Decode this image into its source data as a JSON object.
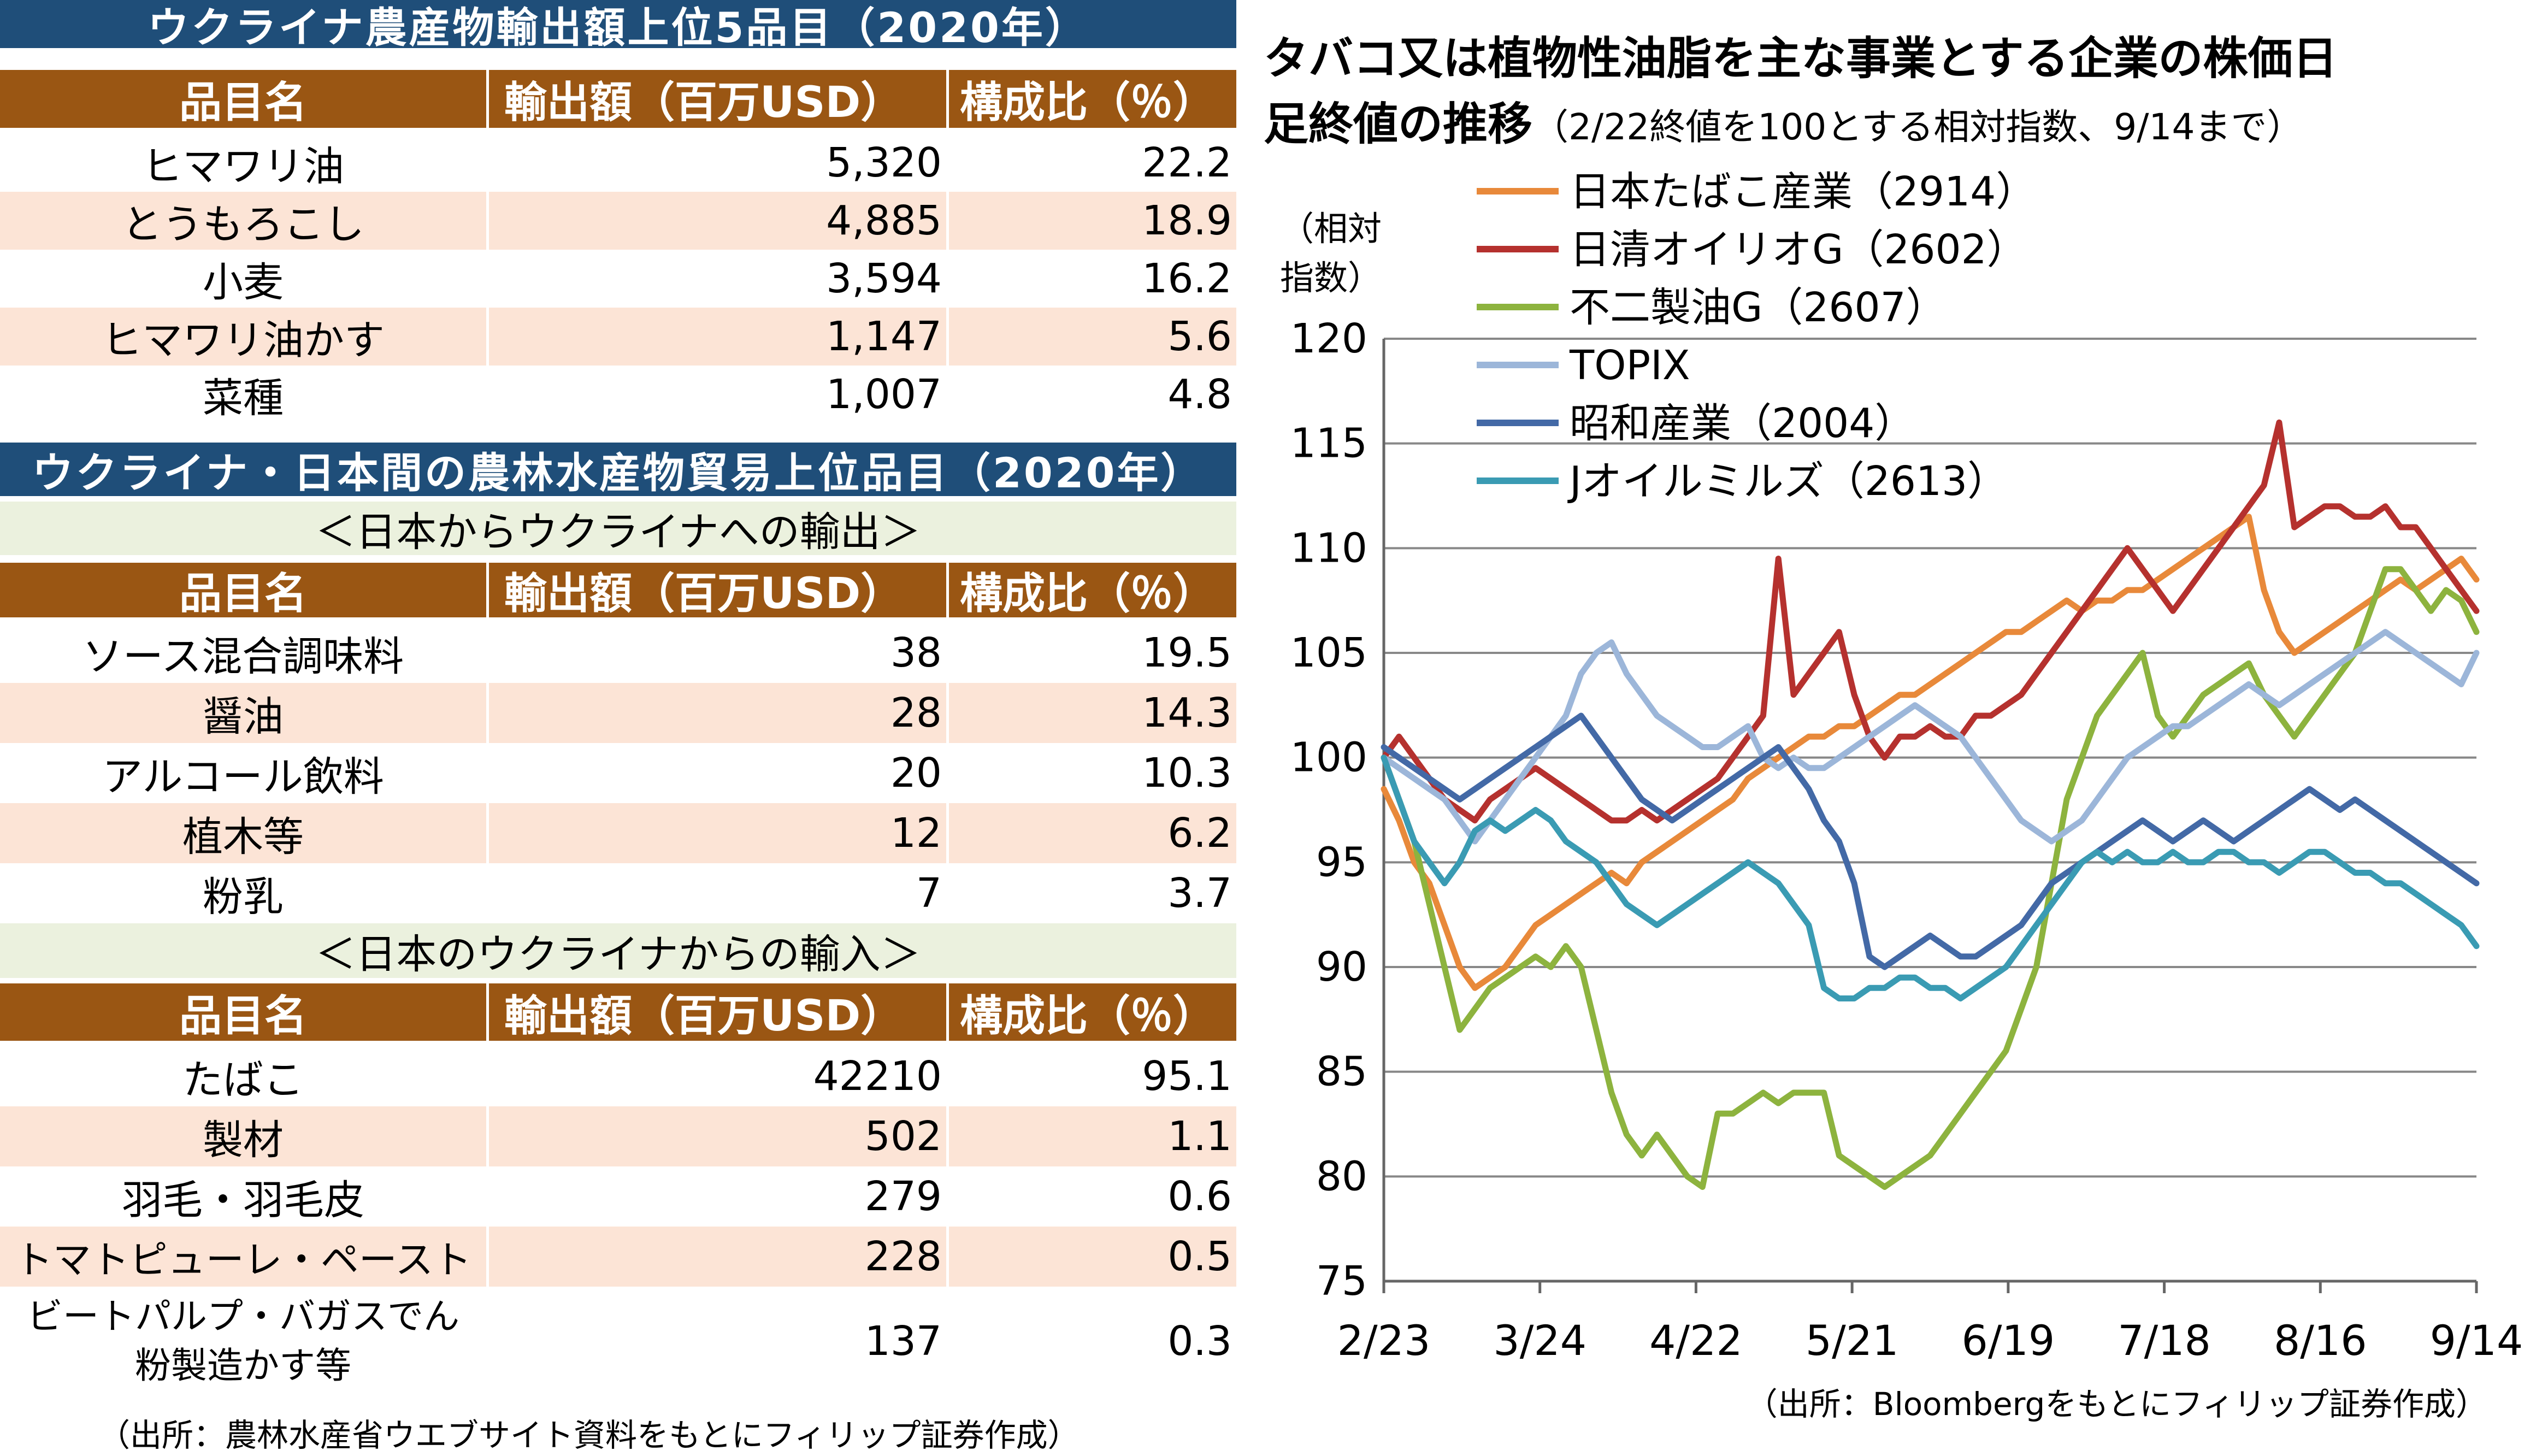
{
  "table1": {
    "title": "ウクライナ農産物輸出額上位5品目（2020年）",
    "headers": [
      "品目名",
      "輸出額（百万USD）",
      "構成比（％）"
    ],
    "rows": [
      [
        "ヒマワリ油",
        "5,320",
        "22.2"
      ],
      [
        "とうもろこし",
        "4,885",
        "18.9"
      ],
      [
        "小麦",
        "3,594",
        "16.2"
      ],
      [
        "ヒマワリ油かす",
        "1,147",
        "5.6"
      ],
      [
        "菜種",
        "1,007",
        "4.8"
      ]
    ]
  },
  "table2": {
    "title": "ウクライナ・日本間の農林水産物貿易上位品目（2020年）",
    "export": {
      "subtitle": "＜日本からウクライナへの輸出＞",
      "headers": [
        "品目名",
        "輸出額（百万USD）",
        "構成比（％）"
      ],
      "rows": [
        [
          "ソース混合調味料",
          "38",
          "19.5"
        ],
        [
          "醤油",
          "28",
          "14.3"
        ],
        [
          "アルコール飲料",
          "20",
          "10.3"
        ],
        [
          "植木等",
          "12",
          "6.2"
        ],
        [
          "粉乳",
          "7",
          "3.7"
        ]
      ]
    },
    "import": {
      "subtitle": "＜日本のウクライナからの輸入＞",
      "headers": [
        "品目名",
        "輸出額（百万USD）",
        "構成比（％）"
      ],
      "rows": [
        [
          "たばこ",
          "42210",
          "95.1"
        ],
        [
          "製材",
          "502",
          "1.1"
        ],
        [
          "羽毛・羽毛皮",
          "279",
          "0.6"
        ],
        [
          "トマトピューレ・ペースト",
          "228",
          "0.5"
        ]
      ],
      "last_row": {
        "line1": "ビートパルプ・バガスでん",
        "line2": "粉製造かす等",
        "value": "137",
        "share": "0.3"
      }
    }
  },
  "left_source": "（出所：農林水産省ウエブサイト資料をもとにフィリップ証券作成）",
  "chart_data": {
    "type": "line",
    "title_bold_1": "タバコ又は植物性油脂を主な事業とする企業の株価日",
    "title_bold_2": "足終値の推移",
    "title_note": "（2/22終値を100とする相対指数、9/14まで）",
    "ylabel_1": "（相対",
    "ylabel_2": "指数）",
    "source": "（出所：Bloombergをもとにフィリップ証券作成）",
    "ylim": [
      75,
      120
    ],
    "yticks": [
      75,
      80,
      85,
      90,
      95,
      100,
      105,
      110,
      115,
      120
    ],
    "x_tick_labels": [
      "2/23",
      "3/24",
      "4/22",
      "5/21",
      "6/19",
      "7/18",
      "8/16",
      "9/14"
    ],
    "grid": true,
    "legend_position": "top-left",
    "series": [
      {
        "name": "日本たばこ産業（2914）",
        "color": "#e8893a",
        "values": [
          98.5,
          97,
          95,
          94,
          92,
          90,
          89,
          89.5,
          90,
          91,
          92,
          92.5,
          93,
          93.5,
          94,
          94.5,
          94,
          95,
          95.5,
          96,
          96.5,
          97,
          97.5,
          98,
          99,
          99.5,
          100,
          100.5,
          101,
          101,
          101.5,
          101.5,
          102,
          102.5,
          103,
          103,
          103.5,
          104,
          104.5,
          105,
          105.5,
          106,
          106,
          106.5,
          107,
          107.5,
          107,
          107.5,
          107.5,
          108,
          108,
          108.5,
          109,
          109.5,
          110,
          110.5,
          111,
          111.5,
          108,
          106,
          105,
          105.5,
          106,
          106.5,
          107,
          107.5,
          108,
          108.5,
          108,
          108.5,
          109,
          109.5,
          108.5
        ]
      },
      {
        "name": "日清オイリオG（2602）",
        "color": "#b5312e",
        "values": [
          100,
          101,
          100,
          99,
          98,
          97.5,
          97,
          98,
          98.5,
          99,
          99.5,
          99,
          98.5,
          98,
          97.5,
          97,
          97,
          97.5,
          97,
          97.5,
          98,
          98.5,
          99,
          100,
          101,
          102,
          109.5,
          103,
          104,
          105,
          106,
          103,
          101,
          100,
          101,
          101,
          101.5,
          101,
          101,
          102,
          102,
          102.5,
          103,
          104,
          105,
          106,
          107,
          108,
          109,
          110,
          109,
          108,
          107,
          108,
          109,
          110,
          111,
          112,
          113,
          116,
          111,
          111.5,
          112,
          112,
          111.5,
          111.5,
          112,
          111,
          111,
          110,
          109,
          108,
          107
        ]
      },
      {
        "name": "不二製油G（2607）",
        "color": "#8db33e",
        "values": [
          100,
          98,
          96,
          93,
          90,
          87,
          88,
          89,
          89.5,
          90,
          90.5,
          90,
          91,
          90,
          87,
          84,
          82,
          81,
          82,
          81,
          80,
          79.5,
          83,
          83,
          83.5,
          84,
          83.5,
          84,
          84,
          84,
          81,
          80.5,
          80,
          79.5,
          80,
          80.5,
          81,
          82,
          83,
          84,
          85,
          86,
          88,
          90,
          94,
          98,
          100,
          102,
          103,
          104,
          105,
          102,
          101,
          102,
          103,
          103.5,
          104,
          104.5,
          103,
          102,
          101,
          102,
          103,
          104,
          105,
          107,
          109,
          109,
          108,
          107,
          108,
          107.5,
          106
        ]
      },
      {
        "name": "TOPIX",
        "color": "#9cb6d9",
        "values": [
          100,
          99.5,
          99,
          98.5,
          98,
          97,
          96,
          97,
          98,
          99,
          100,
          101,
          102,
          104,
          105,
          105.5,
          104,
          103,
          102,
          101.5,
          101,
          100.5,
          100.5,
          101,
          101.5,
          100,
          99.5,
          100,
          99.5,
          99.5,
          100,
          100.5,
          101,
          101.5,
          102,
          102.5,
          102,
          101.5,
          101,
          100,
          99,
          98,
          97,
          96.5,
          96,
          96.5,
          97,
          98,
          99,
          100,
          100.5,
          101,
          101.5,
          101.5,
          102,
          102.5,
          103,
          103.5,
          103,
          102.5,
          103,
          103.5,
          104,
          104.5,
          105,
          105.5,
          106,
          105.5,
          105,
          104.5,
          104,
          103.5,
          105
        ]
      },
      {
        "name": "昭和産業（2004）",
        "color": "#4369a6",
        "values": [
          100.5,
          100,
          99.5,
          99,
          98.5,
          98,
          98.5,
          99,
          99.5,
          100,
          100.5,
          101,
          101.5,
          102,
          101,
          100,
          99,
          98,
          97.5,
          97,
          97.5,
          98,
          98.5,
          99,
          99.5,
          100,
          100.5,
          99.5,
          98.5,
          97,
          96,
          94,
          90.5,
          90,
          90.5,
          91,
          91.5,
          91,
          90.5,
          90.5,
          91,
          91.5,
          92,
          93,
          94,
          94.5,
          95,
          95.5,
          96,
          96.5,
          97,
          96.5,
          96,
          96.5,
          97,
          96.5,
          96,
          96.5,
          97,
          97.5,
          98,
          98.5,
          98,
          97.5,
          98,
          97.5,
          97,
          96.5,
          96,
          95.5,
          95,
          94.5,
          94
        ]
      },
      {
        "name": "Jオイルミルズ（2613）",
        "color": "#3a9bb3",
        "values": [
          100,
          98,
          96,
          95,
          94,
          95,
          96.5,
          97,
          96.5,
          97,
          97.5,
          97,
          96,
          95.5,
          95,
          94,
          93,
          92.5,
          92,
          92.5,
          93,
          93.5,
          94,
          94.5,
          95,
          94.5,
          94,
          93,
          92,
          89,
          88.5,
          88.5,
          89,
          89,
          89.5,
          89.5,
          89,
          89,
          88.5,
          89,
          89.5,
          90,
          91,
          92,
          93,
          94,
          95,
          95.5,
          95,
          95.5,
          95,
          95,
          95.5,
          95,
          95,
          95.5,
          95.5,
          95,
          95,
          94.5,
          95,
          95.5,
          95.5,
          95,
          94.5,
          94.5,
          94,
          94,
          93.5,
          93,
          92.5,
          92,
          91
        ]
      }
    ]
  }
}
